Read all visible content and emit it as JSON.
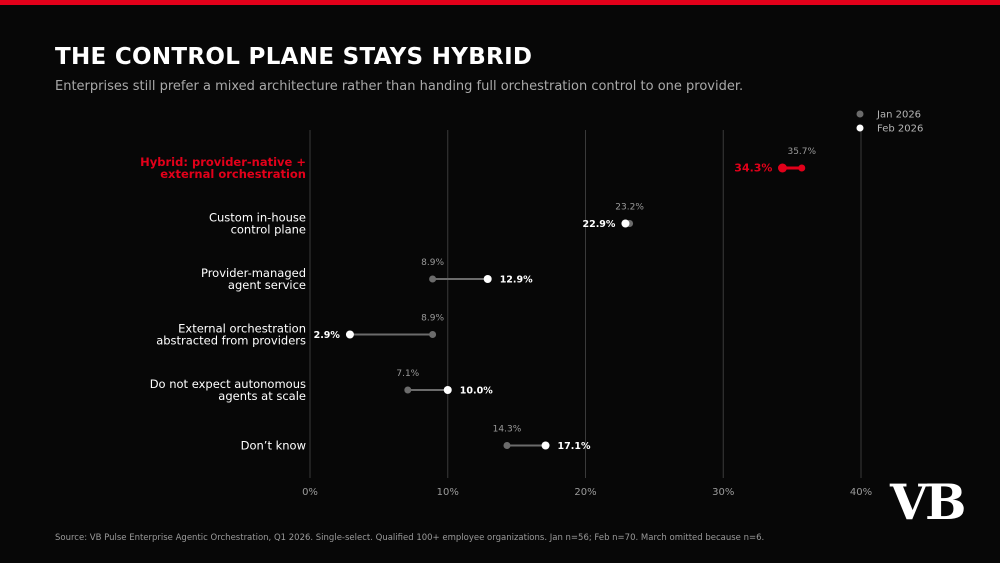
{
  "header": {
    "title": "THE CONTROL PLANE STAYS HYBRID",
    "subtitle": "Enterprises still prefer a mixed architecture rather than handing full orchestration control to one provider."
  },
  "footer": {
    "source": "Source: VB Pulse Enterprise Agentic Orchestration, Q1 2026. Single-select. Qualified 100+ employee organizations. Jan n=56; Feb n=70. March omitted because n=6."
  },
  "logo": {
    "text": "VB"
  },
  "colors": {
    "accent": "#e2001a",
    "jan": "#6b6b6b",
    "feb": "#ffffff",
    "background": "#070707"
  },
  "chart_data": {
    "type": "dumbbell",
    "xlim": [
      0,
      40
    ],
    "xticks": [
      "0%",
      "10%",
      "20%",
      "30%",
      "40%"
    ],
    "xtick_values": [
      0,
      10,
      20,
      30,
      40
    ],
    "grid": true,
    "legend_position": "top-right",
    "series": [
      {
        "name": "Jan 2026"
      },
      {
        "name": "Feb 2026"
      }
    ],
    "categories": [
      {
        "label": [
          "Hybrid: provider-native +",
          "external orchestration"
        ],
        "jan": 35.7,
        "feb": 34.3,
        "jan_label": "35.7%",
        "feb_label": "34.3%",
        "highlight": true
      },
      {
        "label": [
          "Custom in-house",
          "control plane"
        ],
        "jan": 23.2,
        "feb": 22.9,
        "jan_label": "23.2%",
        "feb_label": "22.9%",
        "highlight": false
      },
      {
        "label": [
          "Provider-managed",
          "agent service"
        ],
        "jan": 8.9,
        "feb": 12.9,
        "jan_label": "8.9%",
        "feb_label": "12.9%",
        "highlight": false
      },
      {
        "label": [
          "External orchestration",
          "abstracted from providers"
        ],
        "jan": 8.9,
        "feb": 2.9,
        "jan_label": "8.9%",
        "feb_label": "2.9%",
        "highlight": false
      },
      {
        "label": [
          "Do not expect autonomous",
          "agents at scale"
        ],
        "jan": 7.1,
        "feb": 10.0,
        "jan_label": "7.1%",
        "feb_label": "10.0%",
        "highlight": false
      },
      {
        "label": [
          "Don’t know"
        ],
        "jan": 14.3,
        "feb": 17.1,
        "jan_label": "14.3%",
        "feb_label": "17.1%",
        "highlight": false
      }
    ]
  }
}
